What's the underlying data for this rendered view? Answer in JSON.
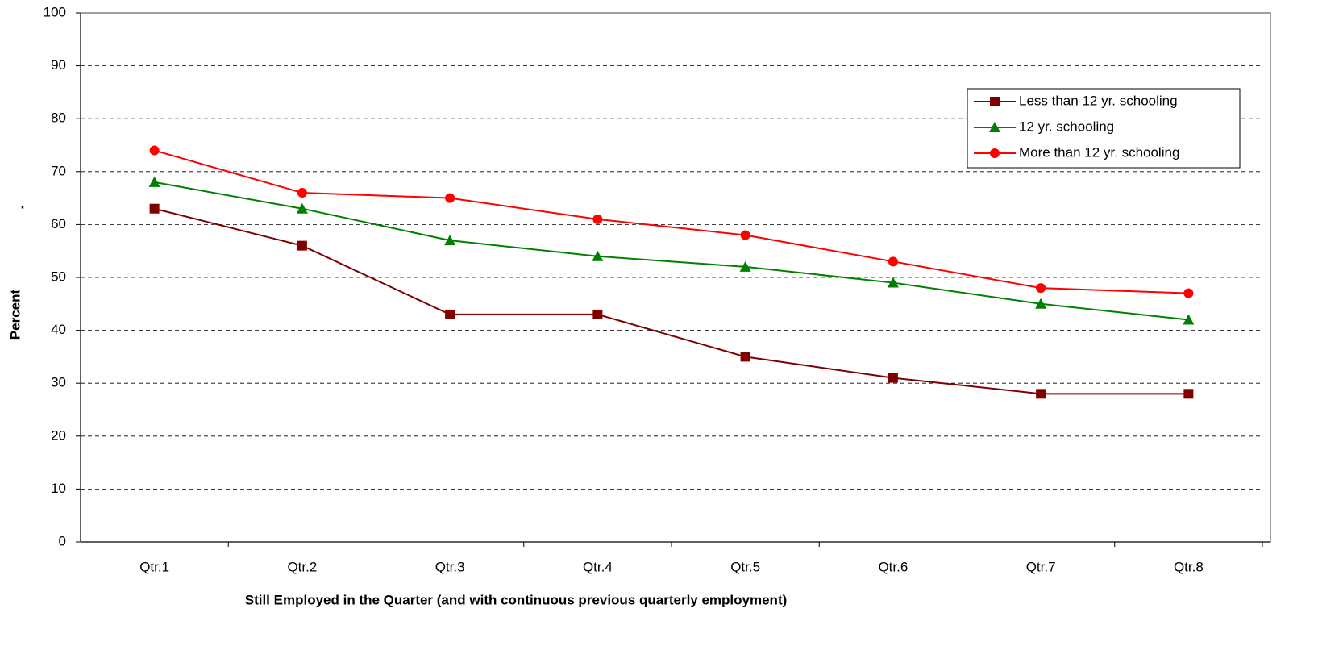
{
  "chart_data": {
    "type": "line",
    "x_label": "Still Employed in the Quarter (and with continuous previous quarterly employment)",
    "y_label": "Percent",
    "annotations": [
      "."
    ],
    "categories": [
      "Qtr.1",
      "Qtr.2",
      "Qtr.3",
      "Qtr.4",
      "Qtr.5",
      "Qtr.6",
      "Qtr.7",
      "Qtr.8"
    ],
    "series": [
      {
        "name": "Less than 12 yr. schooling",
        "color": "#800000",
        "marker": "square",
        "values": [
          63,
          56,
          43,
          43,
          35,
          31,
          28,
          28
        ]
      },
      {
        "name": "12 yr. schooling",
        "color": "#008000",
        "marker": "triangle",
        "values": [
          68,
          63,
          57,
          54,
          52,
          49,
          45,
          42
        ]
      },
      {
        "name": "More than 12 yr. schooling",
        "color": "#ff0000",
        "marker": "circle",
        "values": [
          74,
          66,
          65,
          61,
          58,
          53,
          48,
          47
        ]
      }
    ],
    "ylim": [
      0,
      100
    ],
    "yticks": [
      0,
      10,
      20,
      30,
      40,
      50,
      60,
      70,
      80,
      90,
      100
    ],
    "grid": true,
    "legend": "upper right"
  }
}
